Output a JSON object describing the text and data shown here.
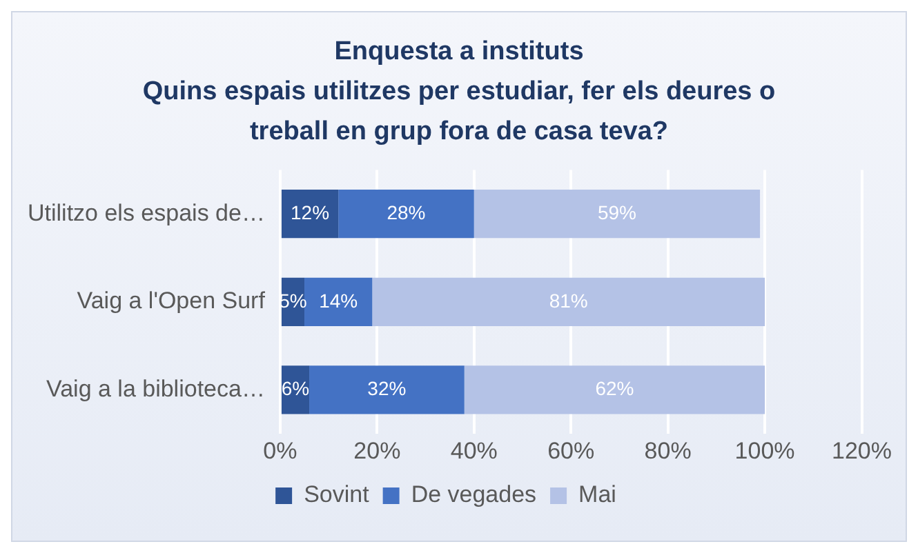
{
  "chart_data": {
    "type": "bar",
    "orientation": "horizontal",
    "stacked": true,
    "title": "Enquesta a instituts",
    "subtitle": "Quins espais utilitzes per estudiar, fer els deures o treball en grup fora de casa teva?",
    "categories": [
      "Utilitzo els espais de…",
      "Vaig a l'Open Surf",
      "Vaig a la biblioteca…"
    ],
    "series": [
      {
        "name": "Sovint",
        "color": "#2f5597",
        "values": [
          12,
          5,
          6
        ],
        "value_labels": [
          "12%",
          "5%",
          "6%"
        ]
      },
      {
        "name": "De vegades",
        "color": "#4472c4",
        "values": [
          28,
          14,
          32
        ],
        "value_labels": [
          "28%",
          "14%",
          "32%"
        ]
      },
      {
        "name": "Mai",
        "color": "#b4c2e6",
        "values": [
          59,
          81,
          62
        ],
        "value_labels": [
          "59%",
          "81%",
          "62%"
        ]
      }
    ],
    "xlim": [
      0,
      120
    ],
    "xticks": [
      {
        "value": 0,
        "label": "0%"
      },
      {
        "value": 20,
        "label": "20%"
      },
      {
        "value": 40,
        "label": "40%"
      },
      {
        "value": 60,
        "label": "60%"
      },
      {
        "value": 80,
        "label": "80%"
      },
      {
        "value": 100,
        "label": "100%"
      },
      {
        "value": 120,
        "label": "120%"
      }
    ],
    "grid": "x",
    "legend": "bottom"
  }
}
